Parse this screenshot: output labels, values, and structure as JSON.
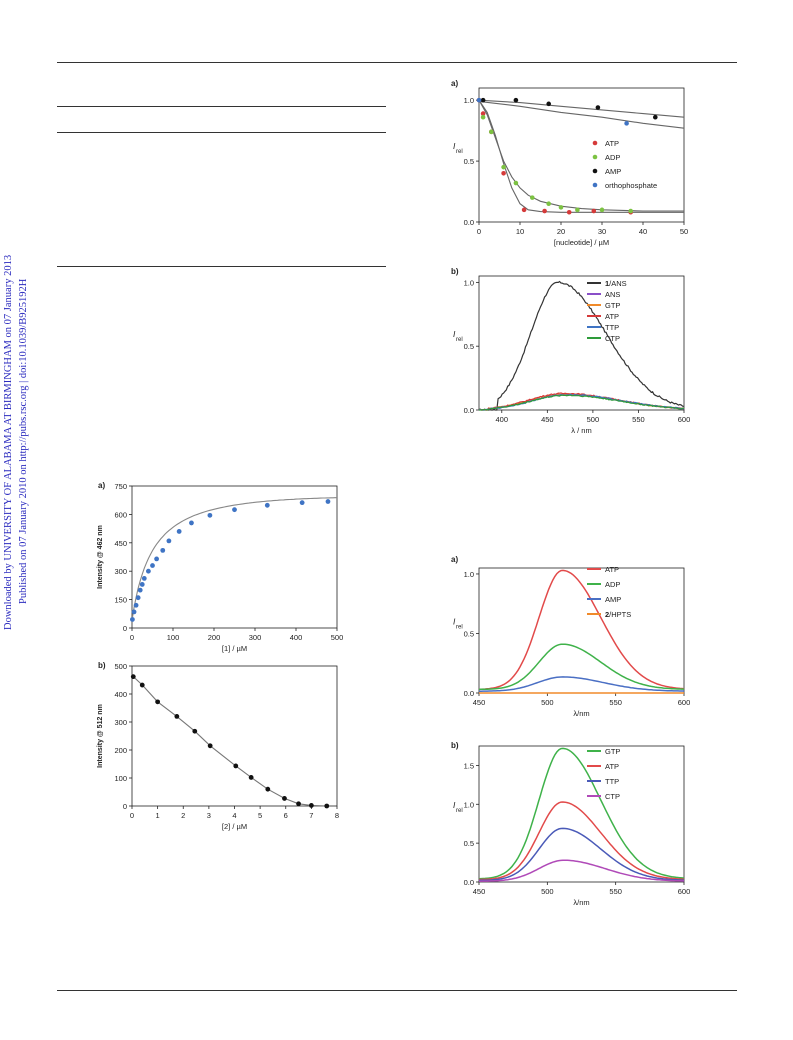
{
  "watermark": {
    "line1": "Downloaded by UNIVERSITY OF ALABAMA AT BIRMINGHAM on 07 January 2013",
    "line2": "Published on 07 January 2010 on http://pubs.rsc.org | doi:10.1039/B925192H"
  },
  "chart_data": [
    {
      "id": "top-right-a",
      "type": "scatter",
      "panel": "a)",
      "xlabel": "[nucleotide] / µM",
      "ylabel": "I",
      "ylabel_sub": "rel",
      "xlim": [
        0,
        50
      ],
      "ylim": [
        0,
        1.1
      ],
      "xticks": [
        0,
        10,
        20,
        30,
        40,
        50
      ],
      "xticklabels": [
        "0",
        "10",
        "20",
        "30",
        "40",
        "50"
      ],
      "yticks": [
        0,
        0.5,
        1.0
      ],
      "yticklabels": [
        "0.0",
        "0.5",
        "1.0"
      ],
      "legend_position": "right",
      "series": [
        {
          "name": "ATP",
          "color": "#d53a3a",
          "points": [
            [
              0,
              1.0
            ],
            [
              1,
              0.89
            ],
            [
              3,
              0.74
            ],
            [
              6,
              0.4
            ],
            [
              11,
              0.1
            ],
            [
              16,
              0.09
            ],
            [
              22,
              0.08
            ],
            [
              28,
              0.09
            ],
            [
              37,
              0.08
            ]
          ]
        },
        {
          "name": "ADP",
          "color": "#7cc242",
          "points": [
            [
              1,
              0.86
            ],
            [
              3,
              0.74
            ],
            [
              6,
              0.45
            ],
            [
              9,
              0.32
            ],
            [
              13,
              0.2
            ],
            [
              17,
              0.15
            ],
            [
              20,
              0.12
            ],
            [
              24,
              0.1
            ],
            [
              30,
              0.1
            ],
            [
              37,
              0.09
            ]
          ]
        },
        {
          "name": "AMP",
          "color": "#111111",
          "points": [
            [
              1,
              1.0
            ],
            [
              9,
              1.0
            ],
            [
              17,
              0.97
            ],
            [
              29,
              0.94
            ],
            [
              43,
              0.86
            ]
          ]
        },
        {
          "name": "orthophosphate",
          "color": "#3f74c4",
          "points": [
            [
              0,
              1.0
            ],
            [
              36,
              0.81
            ]
          ]
        }
      ],
      "fit_lines": [
        [
          [
            0,
            1.0
          ],
          [
            10,
            0.98
          ],
          [
            20,
            0.95
          ],
          [
            30,
            0.92
          ],
          [
            40,
            0.89
          ],
          [
            50,
            0.86
          ]
        ],
        [
          [
            0,
            0.99
          ],
          [
            10,
            0.95
          ],
          [
            20,
            0.9
          ],
          [
            30,
            0.86
          ],
          [
            40,
            0.81
          ],
          [
            50,
            0.77
          ]
        ],
        [
          [
            0,
            1.0
          ],
          [
            2,
            0.9
          ],
          [
            4,
            0.71
          ],
          [
            6,
            0.48
          ],
          [
            8,
            0.28
          ],
          [
            10,
            0.15
          ],
          [
            12,
            0.1
          ],
          [
            15,
            0.085
          ],
          [
            20,
            0.08
          ],
          [
            50,
            0.08
          ]
        ],
        [
          [
            0,
            1.0
          ],
          [
            2,
            0.88
          ],
          [
            4,
            0.69
          ],
          [
            6,
            0.5
          ],
          [
            8,
            0.37
          ],
          [
            10,
            0.28
          ],
          [
            12,
            0.22
          ],
          [
            15,
            0.17
          ],
          [
            20,
            0.13
          ],
          [
            25,
            0.11
          ],
          [
            30,
            0.1
          ],
          [
            40,
            0.09
          ],
          [
            50,
            0.09
          ]
        ]
      ]
    },
    {
      "id": "top-right-b",
      "type": "line",
      "panel": "b)",
      "xlabel": "λ / nm",
      "ylabel": "I",
      "ylabel_sub": "rel",
      "xlim": [
        375,
        600
      ],
      "ylim": [
        0,
        1.05
      ],
      "xticks": [
        400,
        450,
        500,
        550,
        600
      ],
      "xticklabels": [
        "400",
        "450",
        "500",
        "550",
        "600"
      ],
      "yticks": [
        0,
        0.5,
        1.0
      ],
      "yticklabels": [
        "0.0",
        "0.5",
        "1.0"
      ],
      "legend_position": "top-right",
      "series": [
        {
          "name": "1/ANS",
          "color": "#333333",
          "peak": 1.0,
          "center": 462,
          "sl": 30,
          "sr": 52,
          "start": 395
        },
        {
          "name": "ANS",
          "color": "#8a4fc8",
          "peak": 0.12,
          "center": 470,
          "sl": 38,
          "sr": 60,
          "start": 385
        },
        {
          "name": "GTP",
          "color": "#f08a2a",
          "peak": 0.125,
          "center": 468,
          "sl": 38,
          "sr": 60,
          "start": 385
        },
        {
          "name": "ATP",
          "color": "#d53a3a",
          "peak": 0.13,
          "center": 468,
          "sl": 38,
          "sr": 60,
          "start": 385
        },
        {
          "name": "TTP",
          "color": "#3f74c4",
          "peak": 0.12,
          "center": 472,
          "sl": 38,
          "sr": 60,
          "start": 385
        },
        {
          "name": "CTP",
          "color": "#2e9b3a",
          "peak": 0.115,
          "center": 470,
          "sl": 38,
          "sr": 60,
          "start": 385
        }
      ]
    },
    {
      "id": "left-a",
      "type": "scatter",
      "panel": "a)",
      "xlabel": "[1] / µM",
      "ylabel": "Intensity @ 462 nm",
      "xlim": [
        0,
        500
      ],
      "ylim": [
        0,
        750
      ],
      "xticks": [
        0,
        100,
        200,
        300,
        400,
        500
      ],
      "xticklabels": [
        "0",
        "100",
        "200",
        "300",
        "400",
        "500"
      ],
      "yticks": [
        0,
        150,
        300,
        450,
        600,
        750
      ],
      "yticklabels": [
        "0",
        "150",
        "300",
        "450",
        "600",
        "750"
      ],
      "series": [
        {
          "name": "",
          "color": "#3f74c4",
          "points": [
            [
              1,
              45
            ],
            [
              5,
              85
            ],
            [
              10,
              120
            ],
            [
              15,
              160
            ],
            [
              20,
              200
            ],
            [
              25,
              230
            ],
            [
              30,
              262
            ],
            [
              40,
              300
            ],
            [
              50,
              330
            ],
            [
              60,
              365
            ],
            [
              75,
              410
            ],
            [
              90,
              460
            ],
            [
              115,
              510
            ],
            [
              145,
              555
            ],
            [
              190,
              595
            ],
            [
              250,
              625
            ],
            [
              330,
              648
            ],
            [
              415,
              662
            ],
            [
              478,
              668
            ]
          ]
        }
      ],
      "fit_curve": {
        "vmax": 760,
        "kd": 52
      }
    },
    {
      "id": "left-b",
      "type": "line",
      "panel": "b)",
      "xlabel": "[2] / µM",
      "ylabel": "Intensity @ 512 nm",
      "xlim": [
        0,
        8
      ],
      "ylim": [
        0,
        500
      ],
      "xticks": [
        0,
        1,
        2,
        3,
        4,
        5,
        6,
        7,
        8
      ],
      "xticklabels": [
        "0",
        "1",
        "2",
        "3",
        "4",
        "5",
        "6",
        "7",
        "8"
      ],
      "yticks": [
        0,
        100,
        200,
        300,
        400,
        500
      ],
      "yticklabels": [
        "0",
        "100",
        "200",
        "300",
        "400",
        "500"
      ],
      "series": [
        {
          "name": "",
          "color": "#111111",
          "points": [
            [
              0.05,
              462
            ],
            [
              0.4,
              432
            ],
            [
              1.0,
              372
            ],
            [
              1.75,
              320
            ],
            [
              2.45,
              267
            ],
            [
              3.05,
              215
            ],
            [
              4.05,
              143
            ],
            [
              4.65,
              102
            ],
            [
              5.3,
              60
            ],
            [
              5.95,
              27
            ],
            [
              6.5,
              8
            ],
            [
              7.0,
              2
            ],
            [
              7.6,
              0
            ]
          ]
        }
      ]
    },
    {
      "id": "bottom-right-a",
      "type": "line",
      "panel": "a)",
      "xlabel": "λ/nm",
      "ylabel": "I",
      "ylabel_sub": "rel",
      "xlim": [
        450,
        600
      ],
      "ylim": [
        0,
        1.05
      ],
      "xticks": [
        450,
        500,
        550,
        600
      ],
      "xticklabels": [
        "450",
        "500",
        "550",
        "600"
      ],
      "yticks": [
        0,
        0.5,
        1.0
      ],
      "yticklabels": [
        "0.0",
        "0.5",
        "1.0"
      ],
      "legend_position": "top-right",
      "series": [
        {
          "name": "ATP",
          "color": "#e24a4a",
          "peak": 1.0,
          "center": 511,
          "sl": 17,
          "sr": 28,
          "base": 0.03
        },
        {
          "name": "ADP",
          "color": "#3fb24a",
          "peak": 0.38,
          "center": 511,
          "sl": 17,
          "sr": 28,
          "base": 0.03
        },
        {
          "name": "AMP",
          "color": "#4a6fc4",
          "peak": 0.12,
          "center": 511,
          "sl": 18,
          "sr": 30,
          "base": 0.015
        },
        {
          "name": "2/HPTS",
          "color": "#f08a2a",
          "peak": 0.0,
          "center": 511,
          "sl": 18,
          "sr": 30,
          "base": 0.0
        }
      ]
    },
    {
      "id": "bottom-right-b",
      "type": "line",
      "panel": "b)",
      "xlabel": "λ/nm",
      "ylabel": "I",
      "ylabel_sub": "rel",
      "xlim": [
        450,
        600
      ],
      "ylim": [
        0,
        1.75
      ],
      "xticks": [
        450,
        500,
        550,
        600
      ],
      "xticklabels": [
        "450",
        "500",
        "550",
        "600"
      ],
      "yticks": [
        0,
        0.5,
        1.0,
        1.5
      ],
      "yticklabels": [
        "0.0",
        "0.5",
        "1.0",
        "1.5"
      ],
      "legend_position": "top-right",
      "series": [
        {
          "name": "GTP",
          "color": "#3fb24a",
          "peak": 1.68,
          "center": 511,
          "sl": 17,
          "sr": 28,
          "base": 0.04
        },
        {
          "name": "ATP",
          "color": "#e24a4a",
          "peak": 1.0,
          "center": 511,
          "sl": 17,
          "sr": 28,
          "base": 0.03
        },
        {
          "name": "TTP",
          "color": "#4a5ab8",
          "peak": 0.67,
          "center": 511,
          "sl": 17,
          "sr": 28,
          "base": 0.02
        },
        {
          "name": "CTP",
          "color": "#b04ab8",
          "peak": 0.27,
          "center": 512,
          "sl": 18,
          "sr": 30,
          "base": 0.01
        }
      ]
    }
  ]
}
